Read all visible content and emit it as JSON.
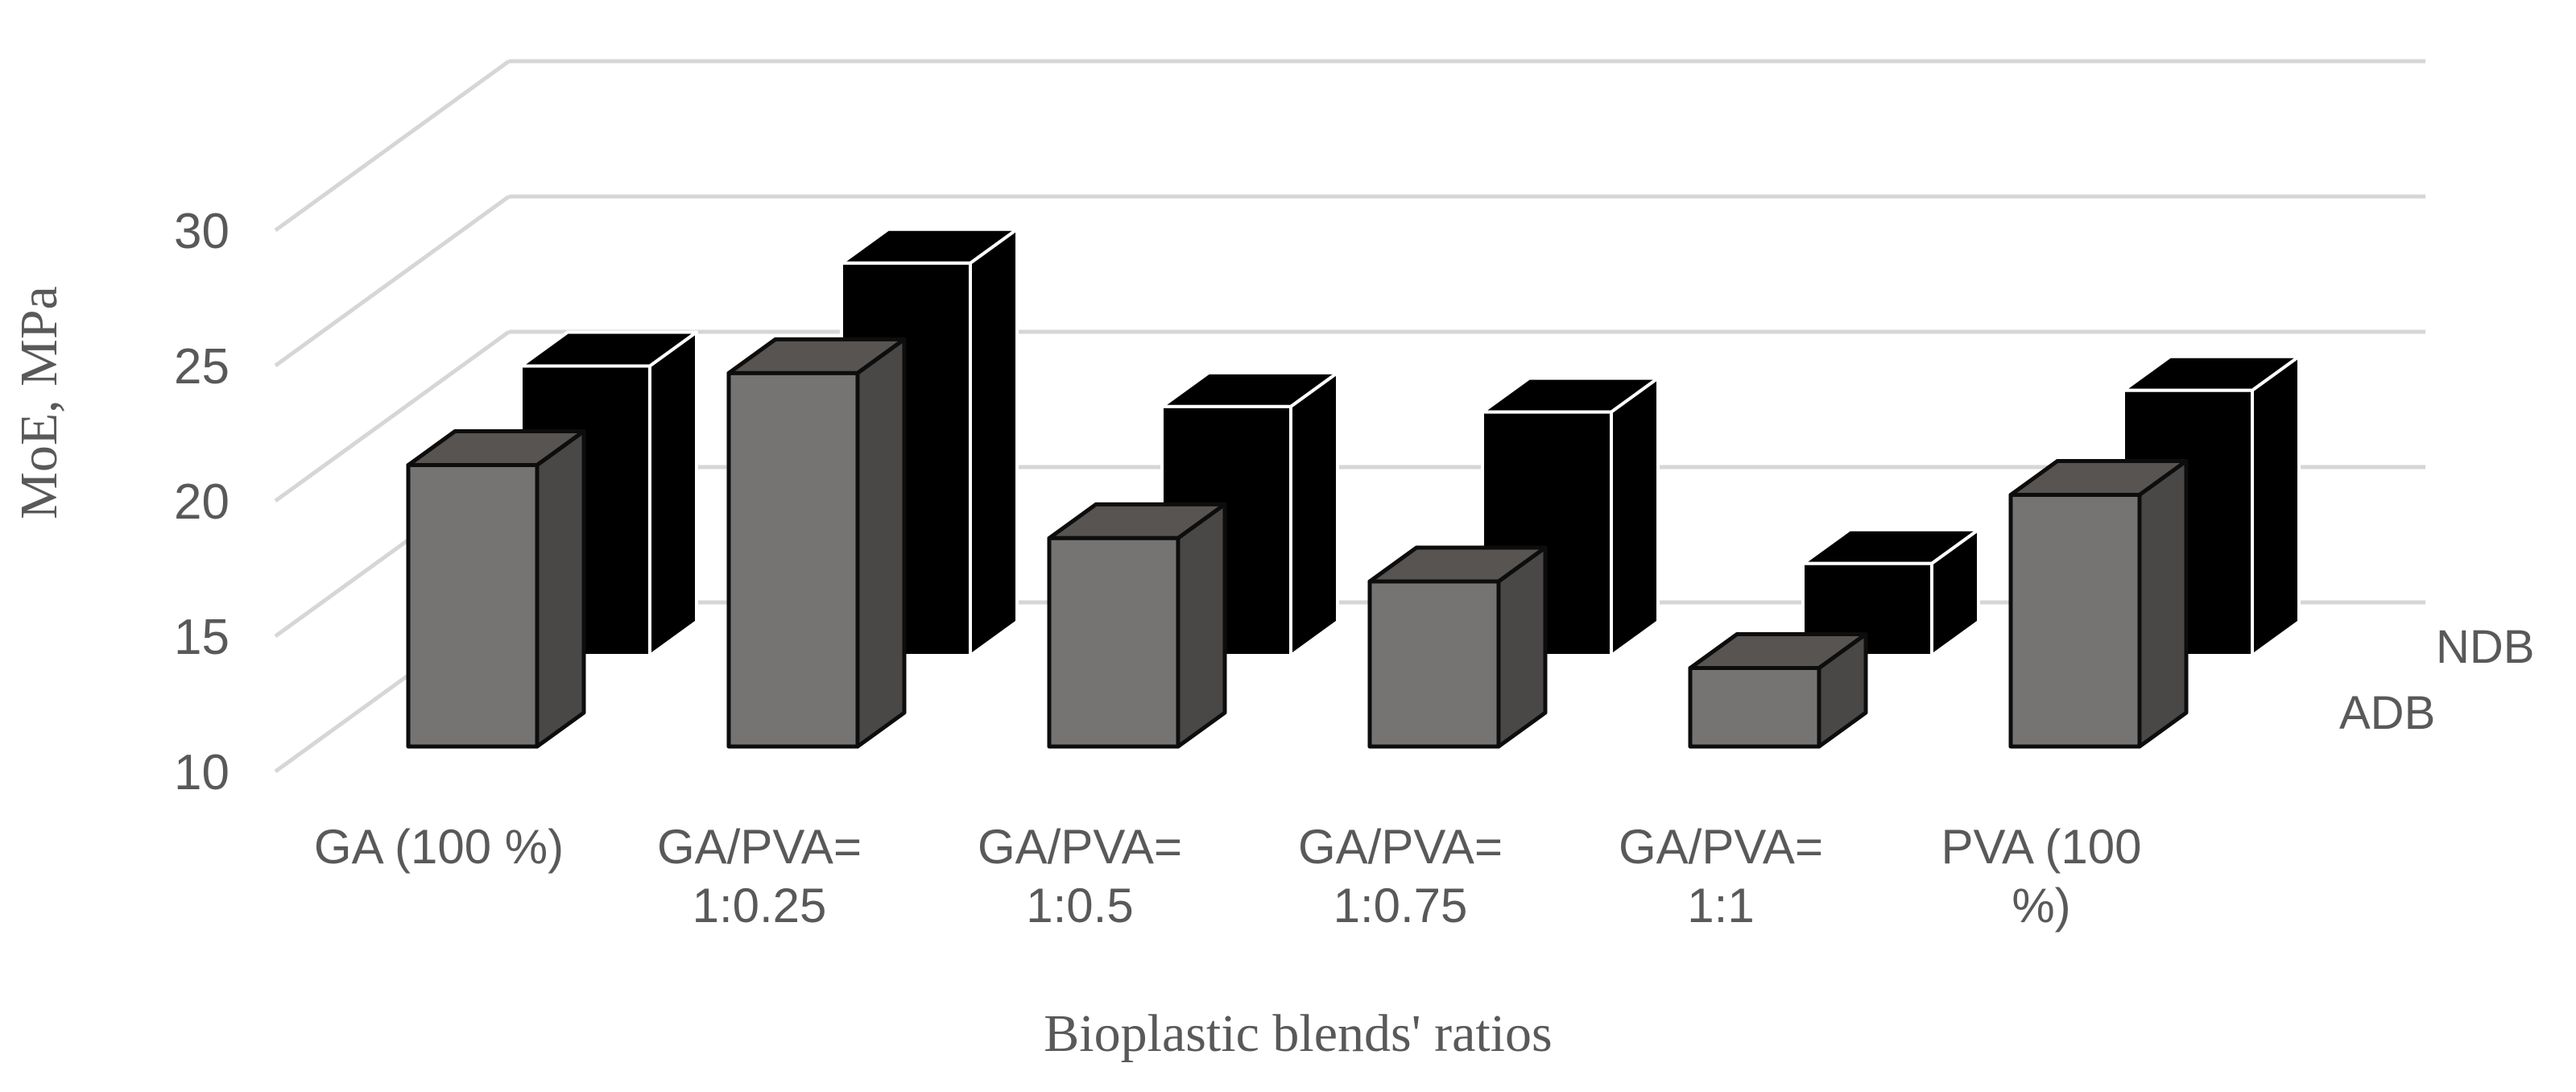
{
  "chart_data": {
    "type": "bar",
    "subtype": "3d-column",
    "title": "",
    "xlabel": "Bioplastic blends' ratios",
    "ylabel": "MoE, MPa",
    "ylim": [
      10,
      30
    ],
    "yticks": [
      10,
      15,
      20,
      25,
      30
    ],
    "grid": true,
    "legend_position": "right-depth-axis",
    "categories": [
      "GA (100 %)",
      "GA/PVA= 1:0.25",
      "GA/PVA= 1:0.5",
      "GA/PVA= 1:0.75",
      "GA/PVA= 1:1",
      "PVA (100 %)"
    ],
    "category_label_lines": [
      [
        "GA (100 %)"
      ],
      [
        "GA/PVA=",
        "1:0.25"
      ],
      [
        "GA/PVA=",
        "1:0.5"
      ],
      [
        "GA/PVA=",
        "1:0.75"
      ],
      [
        "GA/PVA=",
        "1:1"
      ],
      [
        "PVA (100",
        "%)"
      ]
    ],
    "series": [
      {
        "name": "ADB",
        "values": [
          20.4,
          23.8,
          17.7,
          16.1,
          12.9,
          19.3
        ]
      },
      {
        "name": "NDB",
        "values": [
          20.7,
          24.5,
          19.2,
          19.0,
          13.4,
          19.8
        ]
      }
    ]
  },
  "colors": {
    "gridline": "#d6d6d6",
    "label_text": "#595959",
    "adb_front": "#767472",
    "adb_top": "#575451",
    "adb_side": "#4a4846",
    "adb_outline": "#0d0d0d",
    "ndb_fill": "#000000",
    "ndb_outline": "#ffffff",
    "background": "#ffffff"
  }
}
